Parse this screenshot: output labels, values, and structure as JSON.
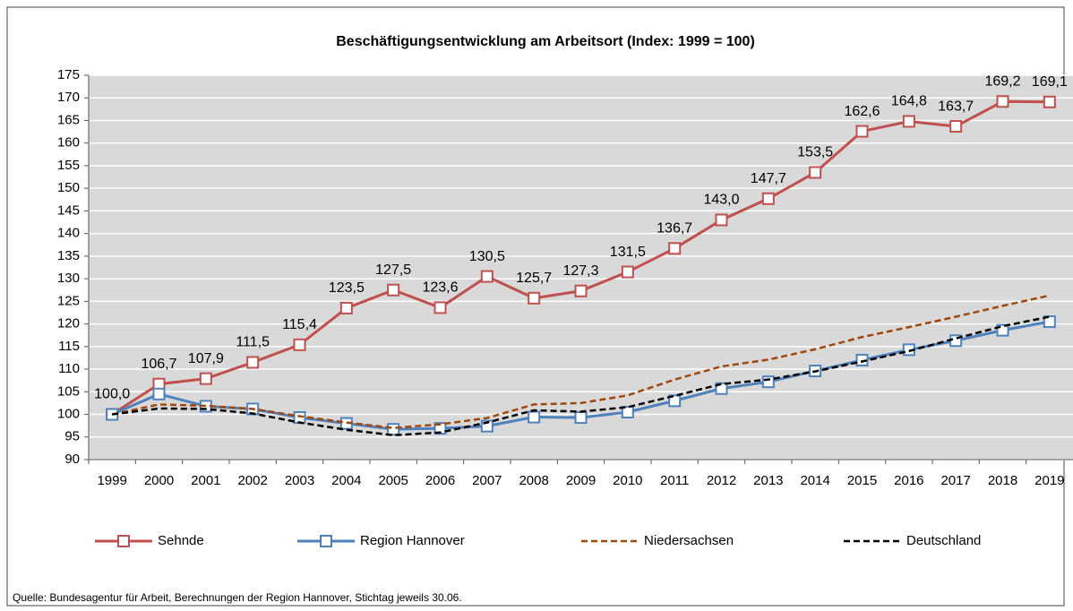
{
  "chart_data": {
    "type": "line",
    "title": "Beschäftigungsentwicklung am Arbeitsort (Index: 1999 = 100)",
    "source": "Quelle: Bundesagentur für Arbeit, Berechnungen der Region Hannover, Stichtag jeweils 30.06.",
    "categories": [
      "1999",
      "2000",
      "2001",
      "2002",
      "2003",
      "2004",
      "2005",
      "2006",
      "2007",
      "2008",
      "2009",
      "2010",
      "2011",
      "2012",
      "2013",
      "2014",
      "2015",
      "2016",
      "2017",
      "2018",
      "2019"
    ],
    "ylim": [
      90,
      175
    ],
    "yticks": [
      90,
      95,
      100,
      105,
      110,
      115,
      120,
      125,
      130,
      135,
      140,
      145,
      150,
      155,
      160,
      165,
      170,
      175
    ],
    "grid": true,
    "series": [
      {
        "name": "Sehnde",
        "color": "#c0504d",
        "marker": "square",
        "dashed": false,
        "values": [
          100.0,
          106.7,
          107.9,
          111.5,
          115.4,
          123.5,
          127.5,
          123.6,
          130.5,
          125.7,
          127.3,
          131.5,
          136.7,
          143.0,
          147.7,
          153.5,
          162.6,
          164.8,
          163.7,
          169.2,
          169.1
        ],
        "value_labels": [
          "100,0",
          "106,7",
          "107,9",
          "111,5",
          "115,4",
          "123,5",
          "127,5",
          "123,6",
          "130,5",
          "125,7",
          "127,3",
          "131,5",
          "136,7",
          "143,0",
          "147,7",
          "153,5",
          "162,6",
          "164,8",
          "163,7",
          "169,2",
          "169,1"
        ]
      },
      {
        "name": "Region  Hannover",
        "color": "#4f81bd",
        "marker": "square",
        "dashed": false,
        "values": [
          100,
          104.5,
          101.8,
          101.2,
          99.3,
          98.0,
          96.7,
          96.9,
          97.4,
          99.4,
          99.3,
          100.5,
          103.0,
          105.7,
          107.2,
          109.6,
          112.0,
          114.3,
          116.3,
          118.6,
          120.5
        ]
      },
      {
        "name": "Niedersachsen",
        "color": "#a0480c",
        "marker": "none",
        "dashed": true,
        "values": [
          100,
          102.2,
          101.9,
          101.2,
          99.6,
          98.2,
          97.0,
          97.8,
          99.2,
          102.2,
          102.5,
          104.2,
          107.7,
          110.6,
          112.1,
          114.4,
          117.1,
          119.3,
          121.6,
          124.0,
          126.3
        ]
      },
      {
        "name": "Deutschland",
        "color": "#000000",
        "marker": "none",
        "dashed": true,
        "values": [
          100,
          101.3,
          101.2,
          100.2,
          98.2,
          96.6,
          95.4,
          96.0,
          98.2,
          100.9,
          100.6,
          101.6,
          104.1,
          106.7,
          107.7,
          109.5,
          111.7,
          114.0,
          116.8,
          119.5,
          121.6
        ]
      }
    ]
  }
}
